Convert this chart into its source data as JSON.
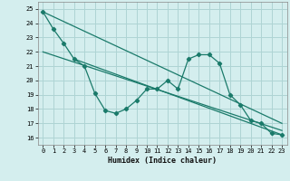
{
  "xlabel": "Humidex (Indice chaleur)",
  "bg_color": "#d4eeee",
  "grid_color": "#aed4d4",
  "line_color": "#1a7a6a",
  "xlim": [
    -0.5,
    23.5
  ],
  "ylim": [
    15.5,
    25.5
  ],
  "xticks": [
    0,
    1,
    2,
    3,
    4,
    5,
    6,
    7,
    8,
    9,
    10,
    11,
    12,
    13,
    14,
    15,
    16,
    17,
    18,
    19,
    20,
    21,
    22,
    23
  ],
  "yticks": [
    16,
    17,
    18,
    19,
    20,
    21,
    22,
    23,
    24,
    25
  ],
  "line1_x": [
    0,
    1,
    2,
    3,
    4,
    5,
    6,
    7,
    8,
    9,
    10,
    11,
    12,
    13,
    14,
    15,
    16,
    17,
    18,
    19,
    20,
    21,
    22,
    23
  ],
  "line1_y": [
    24.8,
    23.6,
    22.6,
    21.5,
    21.0,
    19.1,
    17.9,
    17.7,
    18.0,
    18.6,
    19.4,
    19.4,
    20.0,
    19.4,
    21.5,
    21.8,
    21.8,
    21.2,
    19.0,
    18.3,
    17.2,
    17.0,
    16.3,
    16.2
  ],
  "line2_x": [
    0,
    23
  ],
  "line2_y": [
    24.8,
    17.0
  ],
  "line3_x": [
    0,
    23
  ],
  "line3_y": [
    22.0,
    16.5
  ],
  "line4_x": [
    3,
    23
  ],
  "line4_y": [
    21.5,
    16.2
  ]
}
